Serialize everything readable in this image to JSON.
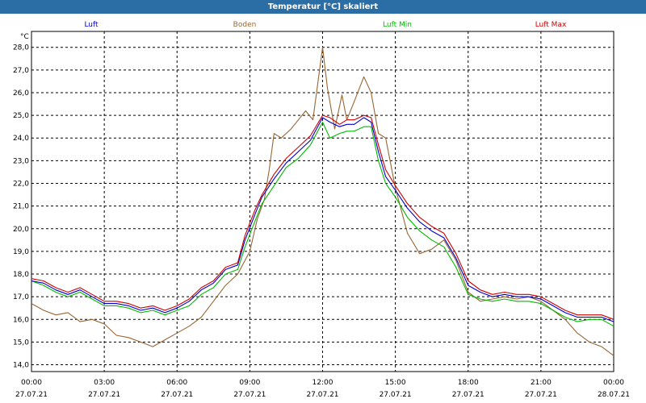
{
  "window": {
    "title": "Temperatur [°C] skaliert"
  },
  "chart_data": {
    "type": "line",
    "title": "Temperatur [°C] skaliert",
    "y_unit": "°C",
    "ylim": [
      13.7,
      28.7
    ],
    "y_ticks": [
      "14,0",
      "15,0",
      "16,0",
      "17,0",
      "18,0",
      "19,0",
      "20,0",
      "21,0",
      "22,0",
      "23,0",
      "24,0",
      "25,0",
      "26,0",
      "27,0",
      "28,0"
    ],
    "y_tick_values": [
      14,
      15,
      16,
      17,
      18,
      19,
      20,
      21,
      22,
      23,
      24,
      25,
      26,
      27,
      28
    ],
    "xlim_hours": [
      0,
      24
    ],
    "x_ticks": [
      {
        "time": "00:00",
        "date": "27.07.21",
        "hour": 0
      },
      {
        "time": "03:00",
        "date": "27.07.21",
        "hour": 3
      },
      {
        "time": "06:00",
        "date": "27.07.21",
        "hour": 6
      },
      {
        "time": "09:00",
        "date": "27.07.21",
        "hour": 9
      },
      {
        "time": "12:00",
        "date": "27.07.21",
        "hour": 12
      },
      {
        "time": "15:00",
        "date": "27.07.21",
        "hour": 15
      },
      {
        "time": "18:00",
        "date": "27.07.21",
        "hour": 18
      },
      {
        "time": "21:00",
        "date": "27.07.21",
        "hour": 21
      },
      {
        "time": "00:00",
        "date": "28.07.21",
        "hour": 24
      }
    ],
    "grid": true,
    "legend_position": "top",
    "series": [
      {
        "name": "Luft",
        "color": "#0000cc",
        "points": [
          [
            0,
            17.7
          ],
          [
            0.5,
            17.6
          ],
          [
            1,
            17.3
          ],
          [
            1.5,
            17.1
          ],
          [
            2,
            17.3
          ],
          [
            2.5,
            17.0
          ],
          [
            3,
            16.7
          ],
          [
            3.5,
            16.7
          ],
          [
            4,
            16.6
          ],
          [
            4.5,
            16.4
          ],
          [
            5,
            16.5
          ],
          [
            5.5,
            16.3
          ],
          [
            6,
            16.5
          ],
          [
            6.5,
            16.8
          ],
          [
            7,
            17.3
          ],
          [
            7.5,
            17.6
          ],
          [
            8,
            18.2
          ],
          [
            8.5,
            18.4
          ],
          [
            8.8,
            19.5
          ],
          [
            9.2,
            20.6
          ],
          [
            9.5,
            21.4
          ],
          [
            10,
            22.2
          ],
          [
            10.5,
            22.9
          ],
          [
            11,
            23.4
          ],
          [
            11.5,
            23.9
          ],
          [
            12,
            24.9
          ],
          [
            12.3,
            24.7
          ],
          [
            12.7,
            24.5
          ],
          [
            13,
            24.6
          ],
          [
            13.3,
            24.6
          ],
          [
            13.7,
            24.9
          ],
          [
            14,
            24.7
          ],
          [
            14.3,
            23.4
          ],
          [
            14.6,
            22.3
          ],
          [
            15,
            21.7
          ],
          [
            15.5,
            20.9
          ],
          [
            16,
            20.3
          ],
          [
            16.5,
            19.9
          ],
          [
            17,
            19.6
          ],
          [
            17.5,
            18.7
          ],
          [
            18,
            17.5
          ],
          [
            18.5,
            17.2
          ],
          [
            19,
            17.0
          ],
          [
            19.5,
            17.1
          ],
          [
            20,
            17.0
          ],
          [
            20.5,
            17.0
          ],
          [
            21,
            16.9
          ],
          [
            21.5,
            16.6
          ],
          [
            22,
            16.3
          ],
          [
            22.5,
            16.1
          ],
          [
            23,
            16.1
          ],
          [
            23.5,
            16.1
          ],
          [
            24,
            15.9
          ]
        ]
      },
      {
        "name": "Boden",
        "color": "#996633",
        "points": [
          [
            0,
            16.7
          ],
          [
            0.5,
            16.4
          ],
          [
            1,
            16.2
          ],
          [
            1.5,
            16.3
          ],
          [
            2,
            15.9
          ],
          [
            2.5,
            16.0
          ],
          [
            3,
            15.8
          ],
          [
            3.5,
            15.3
          ],
          [
            4,
            15.2
          ],
          [
            4.5,
            15.0
          ],
          [
            5,
            14.8
          ],
          [
            5.5,
            15.1
          ],
          [
            6,
            15.4
          ],
          [
            6.5,
            15.7
          ],
          [
            7,
            16.1
          ],
          [
            7.5,
            16.8
          ],
          [
            8,
            17.5
          ],
          [
            8.5,
            18.0
          ],
          [
            9,
            19.0
          ],
          [
            9.3,
            20.4
          ],
          [
            9.6,
            21.3
          ],
          [
            9.8,
            22.6
          ],
          [
            10,
            24.2
          ],
          [
            10.3,
            24.0
          ],
          [
            10.7,
            24.4
          ],
          [
            11,
            24.8
          ],
          [
            11.3,
            25.2
          ],
          [
            11.6,
            24.8
          ],
          [
            12,
            28.0
          ],
          [
            12.2,
            26.2
          ],
          [
            12.5,
            24.4
          ],
          [
            12.8,
            25.9
          ],
          [
            13,
            24.8
          ],
          [
            13.3,
            25.6
          ],
          [
            13.7,
            26.7
          ],
          [
            14,
            26.0
          ],
          [
            14.3,
            24.2
          ],
          [
            14.6,
            24.0
          ],
          [
            15,
            21.8
          ],
          [
            15.5,
            19.8
          ],
          [
            16,
            18.9
          ],
          [
            16.5,
            19.1
          ],
          [
            17,
            19.5
          ],
          [
            17.5,
            18.6
          ],
          [
            18,
            17.2
          ],
          [
            18.5,
            16.8
          ],
          [
            19,
            16.9
          ],
          [
            19.5,
            17.0
          ],
          [
            20,
            16.9
          ],
          [
            20.5,
            17.0
          ],
          [
            21,
            16.8
          ],
          [
            21.5,
            16.4
          ],
          [
            22,
            16.0
          ],
          [
            22.5,
            15.4
          ],
          [
            23,
            15.0
          ],
          [
            23.5,
            14.8
          ],
          [
            24,
            14.4
          ]
        ]
      },
      {
        "name": "Luft Min",
        "color": "#00bb00",
        "points": [
          [
            0,
            17.7
          ],
          [
            0.5,
            17.5
          ],
          [
            1,
            17.2
          ],
          [
            1.5,
            17.0
          ],
          [
            2,
            17.2
          ],
          [
            2.5,
            16.9
          ],
          [
            3,
            16.6
          ],
          [
            3.5,
            16.6
          ],
          [
            4,
            16.5
          ],
          [
            4.5,
            16.3
          ],
          [
            5,
            16.4
          ],
          [
            5.5,
            16.2
          ],
          [
            6,
            16.4
          ],
          [
            6.5,
            16.6
          ],
          [
            7,
            17.1
          ],
          [
            7.5,
            17.4
          ],
          [
            8,
            18.0
          ],
          [
            8.5,
            18.2
          ],
          [
            8.8,
            19.2
          ],
          [
            9.2,
            20.3
          ],
          [
            9.5,
            21.1
          ],
          [
            10,
            21.9
          ],
          [
            10.5,
            22.7
          ],
          [
            11,
            23.1
          ],
          [
            11.5,
            23.7
          ],
          [
            12,
            24.7
          ],
          [
            12.3,
            24.0
          ],
          [
            12.7,
            24.2
          ],
          [
            13,
            24.3
          ],
          [
            13.3,
            24.3
          ],
          [
            13.7,
            24.5
          ],
          [
            14,
            24.5
          ],
          [
            14.3,
            23.0
          ],
          [
            14.6,
            22.0
          ],
          [
            15,
            21.4
          ],
          [
            15.5,
            20.5
          ],
          [
            16,
            19.9
          ],
          [
            16.5,
            19.5
          ],
          [
            17,
            19.2
          ],
          [
            17.5,
            18.3
          ],
          [
            18,
            17.1
          ],
          [
            18.5,
            16.9
          ],
          [
            19,
            16.8
          ],
          [
            19.5,
            16.9
          ],
          [
            20,
            16.8
          ],
          [
            20.5,
            16.8
          ],
          [
            21,
            16.7
          ],
          [
            21.5,
            16.4
          ],
          [
            22,
            16.1
          ],
          [
            22.5,
            15.9
          ],
          [
            23,
            16.0
          ],
          [
            23.5,
            16.0
          ],
          [
            24,
            15.7
          ]
        ]
      },
      {
        "name": "Luft Max",
        "color": "#cc0000",
        "points": [
          [
            0,
            17.8
          ],
          [
            0.5,
            17.7
          ],
          [
            1,
            17.4
          ],
          [
            1.5,
            17.2
          ],
          [
            2,
            17.4
          ],
          [
            2.5,
            17.1
          ],
          [
            3,
            16.8
          ],
          [
            3.5,
            16.8
          ],
          [
            4,
            16.7
          ],
          [
            4.5,
            16.5
          ],
          [
            5,
            16.6
          ],
          [
            5.5,
            16.4
          ],
          [
            6,
            16.6
          ],
          [
            6.5,
            16.9
          ],
          [
            7,
            17.4
          ],
          [
            7.5,
            17.7
          ],
          [
            8,
            18.3
          ],
          [
            8.5,
            18.5
          ],
          [
            8.8,
            19.7
          ],
          [
            9.2,
            20.8
          ],
          [
            9.5,
            21.5
          ],
          [
            10,
            22.4
          ],
          [
            10.5,
            23.1
          ],
          [
            11,
            23.6
          ],
          [
            11.5,
            24.1
          ],
          [
            12,
            25.0
          ],
          [
            12.3,
            24.9
          ],
          [
            12.7,
            24.6
          ],
          [
            13,
            24.8
          ],
          [
            13.3,
            24.8
          ],
          [
            13.7,
            25.0
          ],
          [
            14,
            24.9
          ],
          [
            14.3,
            23.7
          ],
          [
            14.6,
            22.6
          ],
          [
            15,
            21.9
          ],
          [
            15.5,
            21.1
          ],
          [
            16,
            20.5
          ],
          [
            16.5,
            20.1
          ],
          [
            17,
            19.8
          ],
          [
            17.5,
            18.9
          ],
          [
            18,
            17.7
          ],
          [
            18.5,
            17.3
          ],
          [
            19,
            17.1
          ],
          [
            19.5,
            17.2
          ],
          [
            20,
            17.1
          ],
          [
            20.5,
            17.1
          ],
          [
            21,
            17.0
          ],
          [
            21.5,
            16.7
          ],
          [
            22,
            16.4
          ],
          [
            22.5,
            16.2
          ],
          [
            23,
            16.2
          ],
          [
            23.5,
            16.2
          ],
          [
            24,
            16.0
          ]
        ]
      }
    ]
  }
}
